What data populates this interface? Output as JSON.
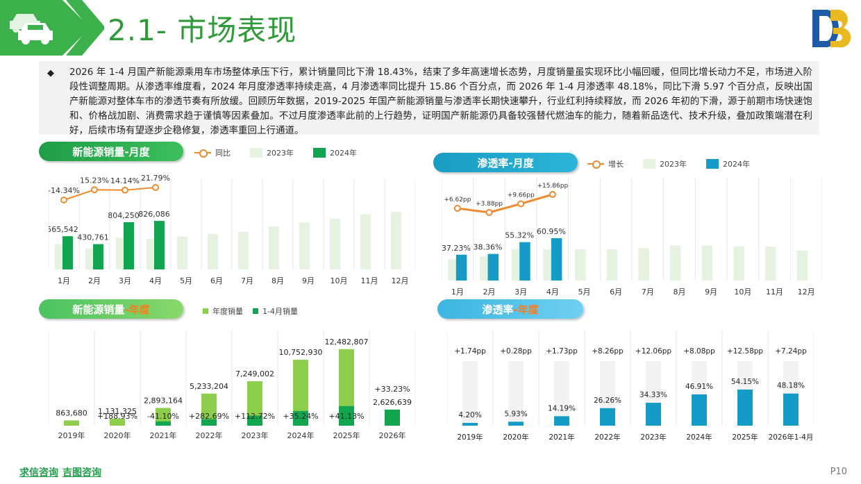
{
  "header": {
    "title": "2.1- 市场表现",
    "colors": {
      "green": "#2f9a3a",
      "blue_logo": "#1d5aa8",
      "gold_logo": "#e8b920"
    }
  },
  "summary": {
    "bullet": "◆",
    "text": "2026 年 1-4 月国产新能源乘用车市场整体承压下行，累计销量同比下滑 18.43%，结束了多年高速增长态势，月度销量虽实现环比小幅回暖，但同比增长动力不足，市场进入阶段性调整周期。从渗透率维度看，2024 年月度渗透率持续走高，4 月渗透率同比提升 15.86 个百分点，而 2026 年 1-4 月渗透率 48.18%，同比下滑 5.97 个百分点，反映出国产新能源对整体车市的渗透节奏有所放缓。回顾历年数据，2019-2025 年国产新能源销量与渗透率长期快速攀升，行业红利持续释放，而 2026 年初的下滑，源于前期市场快速饱和、价格战加剧、消费需求趋于谨慎等因素叠加。不过月度渗透率此前的上行趋势，证明国产新能源仍具备较强替代燃油车的能力，随着新品迭代、技术升级，叠加政策端潜在利好，后续市场有望逐步企稳修复，渗透率重回上行通道。"
  },
  "panels": {
    "monthly_sales": {
      "title": "新能源销量-月度",
      "legend": [
        "同比",
        "2023年",
        "2024年"
      ]
    },
    "monthly_pen": {
      "title": "渗透率-月度",
      "legend": [
        "增长",
        "2023年",
        "2024年"
      ]
    },
    "annual_sales": {
      "title_main": "新能源销量",
      "title_accent": "-年度",
      "legend": [
        "年度销量",
        "1-4月销量"
      ]
    },
    "annual_pen": {
      "title_main": "渗透率",
      "title_accent": "-年度"
    }
  },
  "chart_data": [
    {
      "type": "bar",
      "title": "新能源销量-月度",
      "categories": [
        "1月",
        "2月",
        "3月",
        "4月",
        "5月",
        "6月",
        "7月",
        "8月",
        "9月",
        "10月",
        "11月",
        "12月"
      ],
      "series": [
        {
          "name": "2023年",
          "values": [
            430000,
            360000,
            540000,
            520000,
            560000,
            600000,
            640000,
            730000,
            800000,
            860000,
            940000,
            980000
          ],
          "color": "#e4f2df"
        },
        {
          "name": "2024年",
          "values": [
            565542,
            430761,
            804250,
            826086,
            null,
            null,
            null,
            null,
            null,
            null,
            null,
            null
          ],
          "labels": [
            "565,542",
            "430,761",
            "804,250",
            "826,086"
          ],
          "color": "#12a550"
        }
      ],
      "line": {
        "name": "同比",
        "values": [
          -14.34,
          15.23,
          14.14,
          21.79
        ],
        "labels": [
          "-14.34%",
          "15.23%",
          "14.14%",
          "21.79%"
        ],
        "color": "#f08a2c"
      }
    },
    {
      "type": "bar",
      "title": "渗透率-月度",
      "categories": [
        "1月",
        "2月",
        "3月",
        "4月",
        "5月",
        "6月",
        "7月",
        "8月",
        "9月",
        "10月",
        "11月",
        "12月"
      ],
      "series": [
        {
          "name": "2023年",
          "values": [
            30.6,
            34.5,
            45.7,
            45.1,
            45.0,
            45.0,
            46.5,
            50.5,
            50.3,
            48.8,
            48.8,
            43.0
          ],
          "color": "#e4f2df"
        },
        {
          "name": "2024年",
          "values": [
            37.23,
            38.36,
            55.32,
            60.95,
            null,
            null,
            null,
            null,
            null,
            null,
            null,
            null
          ],
          "labels": [
            "37.23%",
            "38.36%",
            "55.32%",
            "60.95%"
          ],
          "color": "#149cc7"
        }
      ],
      "line": {
        "name": "增长",
        "values": [
          6.62,
          3.88,
          9.66,
          15.86
        ],
        "labels": [
          "+6.62pp",
          "+3.88pp",
          "+9.66pp",
          "+15.86pp"
        ],
        "color": "#f08a2c"
      }
    },
    {
      "type": "bar",
      "title": "新能源销量-年度",
      "categories": [
        "2019年",
        "2020年",
        "2021年",
        "2022年",
        "2023年",
        "2024年",
        "2025年",
        "2026年"
      ],
      "series": [
        {
          "name": "年度销量",
          "values": [
            863680,
            1131325,
            2893164,
            5233204,
            7249002,
            10752930,
            12482807,
            null
          ],
          "labels": [
            "863,680",
            "1,131,325",
            "2,893,164",
            "5,233,204",
            "7,249,002",
            "10,752,930",
            "12,482,807",
            ""
          ],
          "color": "#8dce4c"
        },
        {
          "name": "1-4月销量",
          "values": [
            null,
            null,
            700000,
            1050000,
            1650000,
            2400000,
            3200000,
            2626639
          ],
          "labels": [
            "",
            "",
            "",
            "",
            "",
            "",
            "",
            "2,626,639"
          ],
          "color": "#12a550"
        }
      ],
      "growth_labels": [
        "",
        "+188.93%",
        "-41.10%",
        "+282.69%",
        "+112.72%",
        "+35.24%",
        "+41.13%",
        "+33.23%"
      ]
    },
    {
      "type": "bar",
      "title": "渗透率-年度",
      "categories": [
        "2019年",
        "2020年",
        "2021年",
        "2022年",
        "2023年",
        "2024年",
        "2025年",
        "2026年1-4月"
      ],
      "series": [
        {
          "name": "渗透率",
          "values": [
            4.2,
            5.93,
            14.19,
            26.26,
            34.33,
            46.91,
            54.15,
            48.18
          ],
          "labels": [
            "4.20%",
            "5.93%",
            "14.19%",
            "26.26%",
            "34.33%",
            "46.91%",
            "54.15%",
            "48.18%"
          ],
          "color": "#149cc7"
        }
      ],
      "growth_labels": [
        "+1.74pp",
        "+0.28pp",
        "+1.73pp",
        "+8.26pp",
        "+12.06pp",
        "+8.08pp",
        "+12.58pp",
        "+7.24pp"
      ]
    }
  ],
  "footer": {
    "brand1": "求信咨询",
    "brand2": "吉图咨询",
    "page": "P10"
  }
}
